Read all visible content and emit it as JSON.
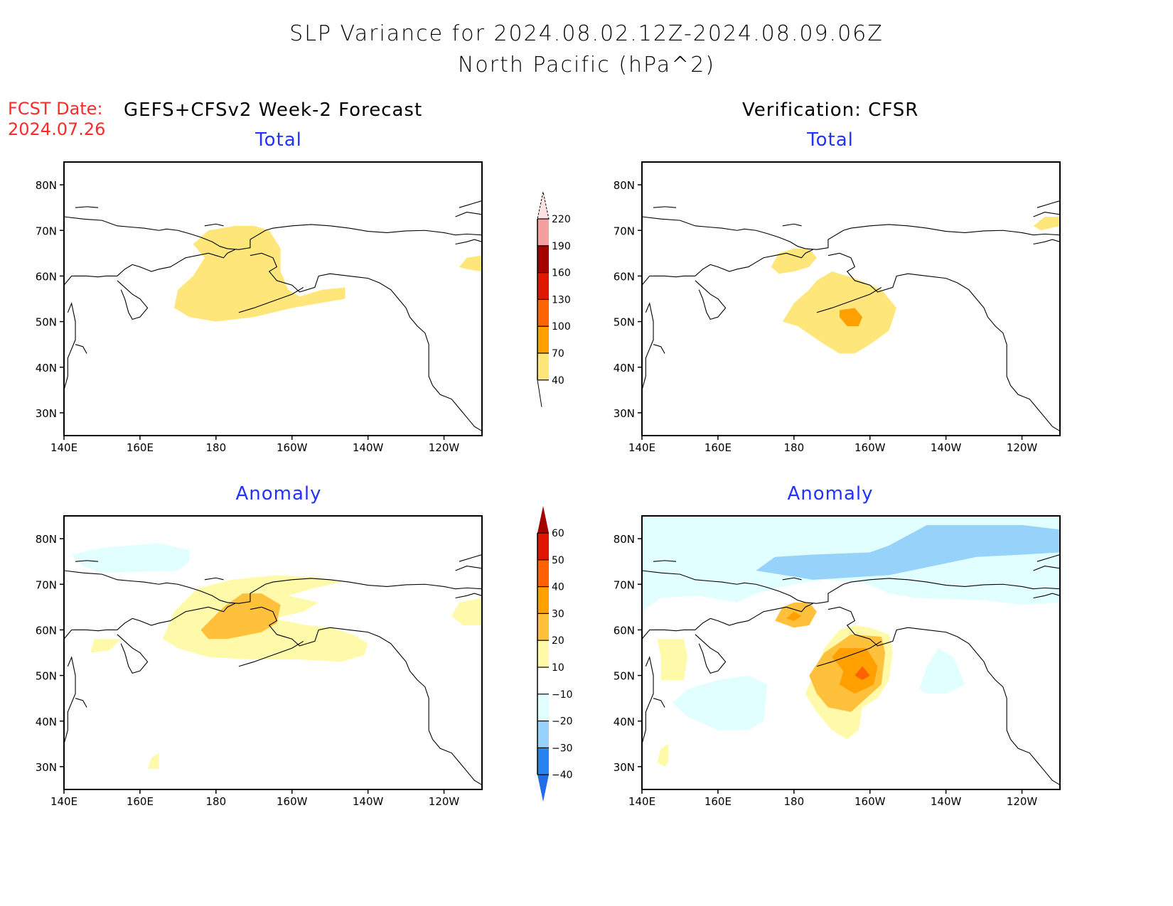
{
  "header": {
    "title_line1": "SLP Variance for 2024.08.02.12Z-2024.08.09.06Z",
    "title_line2": "North Pacific (hPa^2)",
    "fcst_label": "FCST Date:",
    "fcst_date": "2024.07.26",
    "left_column_title": "GEFS+CFSv2 Week-2 Forecast",
    "right_column_title": "Verification: CFSR"
  },
  "colors": {
    "fcst_text": "#ff2a2a",
    "panel_title": "#2233ff"
  },
  "chart_data": [
    {
      "type": "heatmap",
      "id": "forecast-total",
      "title": "Total",
      "column": "GEFS+CFSv2 Week-2 Forecast",
      "x_ticks": [
        "140E",
        "160E",
        "180",
        "160W",
        "140W",
        "120W"
      ],
      "y_ticks": [
        "30N",
        "40N",
        "50N",
        "60N",
        "70N",
        "80N"
      ],
      "xlim": [
        140,
        250
      ],
      "ylim": [
        25,
        85
      ],
      "colorbar": "total",
      "regions": [
        {
          "level": "40-70",
          "label": "broad maximum over Bering Sea / Aleutians",
          "lon_range": [
            169,
            214
          ],
          "lat_range": [
            50,
            71
          ]
        },
        {
          "level": "40-70",
          "label": "small patch Canadian Arctic",
          "lon_range": [
            244,
            250
          ],
          "lat_range": [
            61,
            65
          ]
        }
      ]
    },
    {
      "type": "heatmap",
      "id": "verification-total",
      "title": "Total",
      "column": "Verification: CFSR",
      "x_ticks": [
        "140E",
        "160E",
        "180",
        "160W",
        "140W",
        "120W"
      ],
      "y_ticks": [
        "30N",
        "40N",
        "50N",
        "60N",
        "70N",
        "80N"
      ],
      "xlim": [
        140,
        250
      ],
      "ylim": [
        25,
        85
      ],
      "colorbar": "total",
      "regions": [
        {
          "level": "40-70",
          "label": "eastern Siberia",
          "lon_range": [
            174,
            185
          ],
          "lat_range": [
            60,
            66
          ]
        },
        {
          "level": "40-70",
          "label": "Gulf of Alaska / Aleutians",
          "lon_range": [
            176,
            208
          ],
          "lat_range": [
            43,
            62
          ]
        },
        {
          "level": "70-100",
          "label": "core south of Aleutians",
          "lon_range": [
            192,
            199
          ],
          "lat_range": [
            49,
            53
          ]
        },
        {
          "level": "40-70",
          "label": "Canadian Arctic",
          "lon_range": [
            243,
            250
          ],
          "lat_range": [
            70,
            73
          ]
        }
      ]
    },
    {
      "type": "heatmap",
      "id": "forecast-anomaly",
      "title": "Anomaly",
      "column": "GEFS+CFSv2 Week-2 Forecast",
      "x_ticks": [
        "140E",
        "160E",
        "180",
        "160W",
        "140W",
        "120W"
      ],
      "y_ticks": [
        "30N",
        "40N",
        "50N",
        "60N",
        "70N",
        "80N"
      ],
      "xlim": [
        140,
        250
      ],
      "ylim": [
        25,
        85
      ],
      "colorbar": "anomaly",
      "regions": [
        {
          "level": "-20--10",
          "label": "East Siberian Sea",
          "lon_range": [
            143,
            175
          ],
          "lat_range": [
            72,
            79
          ]
        },
        {
          "level": "10-20",
          "label": "Bering region broad",
          "lon_range": [
            166,
            222
          ],
          "lat_range": [
            53,
            71
          ]
        },
        {
          "level": "20-30",
          "label": "Bering Strait core",
          "lon_range": [
            176,
            197
          ],
          "lat_range": [
            58,
            68
          ]
        },
        {
          "level": "10-20",
          "label": "Okhotsk patch",
          "lon_range": [
            147,
            155
          ],
          "lat_range": [
            55,
            58
          ]
        },
        {
          "level": "10-20",
          "label": "Canadian Arctic patch",
          "lon_range": [
            242,
            250
          ],
          "lat_range": [
            60,
            66
          ]
        },
        {
          "level": "10-20",
          "label": "subtropical patch",
          "lon_range": [
            162,
            165
          ],
          "lat_range": [
            29,
            33
          ]
        }
      ]
    },
    {
      "type": "heatmap",
      "id": "verification-anomaly",
      "title": "Anomaly",
      "column": "Verification: CFSR",
      "x_ticks": [
        "140E",
        "160E",
        "180",
        "160W",
        "140W",
        "120W"
      ],
      "y_ticks": [
        "30N",
        "40N",
        "50N",
        "60N",
        "70N",
        "80N"
      ],
      "xlim": [
        140,
        250
      ],
      "ylim": [
        25,
        85
      ],
      "colorbar": "anomaly",
      "regions": [
        {
          "level": "-20--10",
          "label": "Arctic broad",
          "lon_range": [
            140,
            250
          ],
          "lat_range": [
            66,
            85
          ]
        },
        {
          "level": "-30--20",
          "label": "Beaufort/Chukchi",
          "lon_range": [
            168,
            248
          ],
          "lat_range": [
            71,
            83
          ]
        },
        {
          "level": "20-30",
          "label": "Chukotka",
          "lon_range": [
            175,
            185
          ],
          "lat_range": [
            60,
            66
          ]
        },
        {
          "level": "30-40",
          "label": "Chukotka core",
          "lon_range": [
            178,
            182
          ],
          "lat_range": [
            62,
            64
          ]
        },
        {
          "level": "10-20",
          "label": "Gulf of Alaska broad",
          "lon_range": [
            174,
            207
          ],
          "lat_range": [
            36,
            61
          ]
        },
        {
          "level": "20-30",
          "label": "Gulf of Alaska",
          "lon_range": [
            177,
            204
          ],
          "lat_range": [
            42,
            59
          ]
        },
        {
          "level": "30-40",
          "label": "Gulf core",
          "lon_range": [
            188,
            202
          ],
          "lat_range": [
            45,
            55
          ]
        },
        {
          "level": "40-50",
          "label": "Gulf peak",
          "lon_range": [
            196,
            200
          ],
          "lat_range": [
            49,
            52
          ]
        },
        {
          "level": "-20--10",
          "label": "NW Pacific",
          "lon_range": [
            148,
            177
          ],
          "lat_range": [
            37,
            50
          ]
        },
        {
          "level": "-20--10",
          "label": "NE Pacific",
          "lon_range": [
            213,
            227
          ],
          "lat_range": [
            46,
            56
          ]
        },
        {
          "level": "10-20",
          "label": "Okhotsk patch",
          "lon_range": [
            144,
            152
          ],
          "lat_range": [
            49,
            58
          ]
        },
        {
          "level": "10-20",
          "label": "subtropical patch",
          "lon_range": [
            144,
            147
          ],
          "lat_range": [
            30,
            35
          ]
        }
      ]
    }
  ],
  "colorbars": {
    "total": {
      "levels": [
        "40",
        "70",
        "100",
        "130",
        "160",
        "190",
        "220"
      ],
      "colors": [
        "#ffe67a",
        "#ffa000",
        "#ff6400",
        "#e11800",
        "#a50000",
        "#f4a0a0",
        "#ffe1e1"
      ],
      "extend": "both"
    },
    "anomaly": {
      "levels": [
        "-40",
        "-30",
        "-20",
        "-10",
        "10",
        "20",
        "30",
        "40",
        "50",
        "60"
      ],
      "colors": [
        "#1e6eeb",
        "#2882f0",
        "#96d2fa",
        "#e1ffff",
        "#ffffff",
        "#fffaaa",
        "#ffc03c",
        "#ffa000",
        "#ff6000",
        "#e11400",
        "#a50000"
      ],
      "extend": "both"
    }
  }
}
